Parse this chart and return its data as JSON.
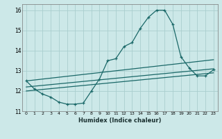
{
  "title": "",
  "xlabel": "Humidex (Indice chaleur)",
  "xlim": [
    -0.5,
    23.5
  ],
  "ylim": [
    11.0,
    16.3
  ],
  "yticks": [
    11,
    12,
    13,
    14,
    15,
    16
  ],
  "xticks": [
    0,
    1,
    2,
    3,
    4,
    5,
    6,
    7,
    8,
    9,
    10,
    11,
    12,
    13,
    14,
    15,
    16,
    17,
    18,
    19,
    20,
    21,
    22,
    23
  ],
  "bg_color": "#cce8e8",
  "grid_color": "#aacece",
  "line_color": "#1a6868",
  "lines": [
    {
      "x": [
        0,
        1,
        2,
        3,
        4,
        5,
        6,
        7,
        8,
        9,
        10,
        11,
        12,
        13,
        14,
        15,
        16,
        17,
        18,
        19,
        20,
        21,
        22,
        23
      ],
      "y": [
        12.5,
        12.1,
        11.85,
        11.7,
        11.45,
        11.35,
        11.35,
        11.4,
        12.0,
        12.6,
        13.5,
        13.6,
        14.2,
        14.4,
        15.1,
        15.65,
        16.0,
        16.0,
        15.3,
        13.7,
        13.15,
        12.75,
        12.75,
        13.05
      ],
      "marker": true
    },
    {
      "x": [
        0,
        23
      ],
      "y": [
        12.5,
        13.55
      ],
      "marker": false
    },
    {
      "x": [
        0,
        23
      ],
      "y": [
        12.2,
        13.1
      ],
      "marker": false
    },
    {
      "x": [
        0,
        23
      ],
      "y": [
        12.0,
        12.9
      ],
      "marker": false
    }
  ],
  "figsize": [
    3.2,
    2.0
  ],
  "dpi": 100
}
